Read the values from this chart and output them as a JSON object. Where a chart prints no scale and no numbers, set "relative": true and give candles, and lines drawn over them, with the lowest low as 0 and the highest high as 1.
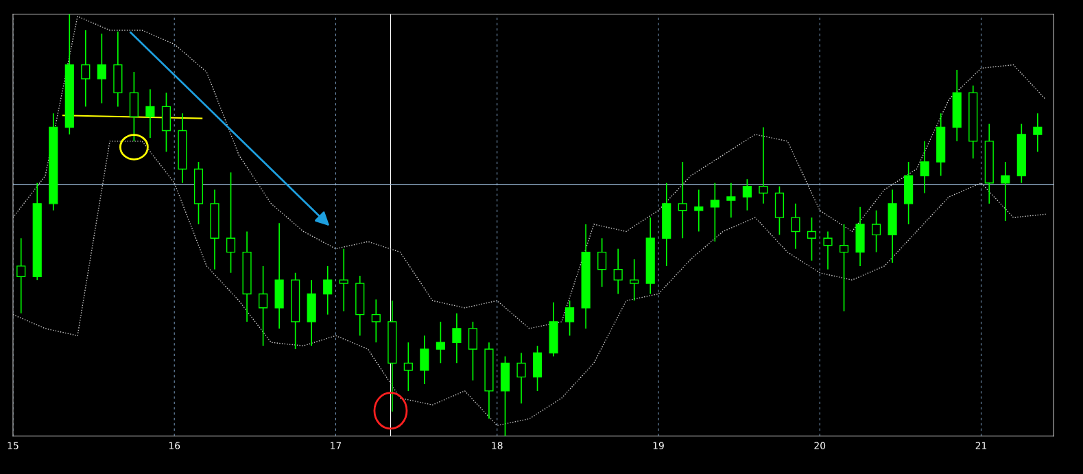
{
  "chart_data": {
    "type": "candlestick",
    "relative": true,
    "color": "#00ff00",
    "x": [
      15.05,
      15.15,
      15.25,
      15.35,
      15.45,
      15.55,
      15.65,
      15.75,
      15.85,
      15.95,
      16.05,
      16.15,
      16.25,
      16.35,
      16.45,
      16.55,
      16.65,
      16.75,
      16.85,
      16.95,
      17.05,
      17.15,
      17.25,
      17.35,
      17.45,
      17.55,
      17.65,
      17.75,
      17.85,
      17.95,
      18.05,
      18.15,
      18.25,
      18.35,
      18.45,
      18.55,
      18.65,
      18.75,
      18.85,
      18.95,
      19.05,
      19.15,
      19.25,
      19.35,
      19.45,
      19.55,
      19.65,
      19.75,
      19.85,
      19.95,
      20.05,
      20.15,
      20.25,
      20.35,
      20.45,
      20.55,
      20.65,
      20.75,
      20.85,
      20.95,
      21.05,
      21.15,
      21.25,
      21.35
    ],
    "ohlc": [
      [
        0.403,
        0.469,
        0.291,
        0.378
      ],
      [
        0.378,
        0.6,
        0.37,
        0.551
      ],
      [
        0.551,
        0.765,
        0.535,
        0.732
      ],
      [
        0.732,
        1.0,
        0.715,
        0.88
      ],
      [
        0.88,
        0.962,
        0.781,
        0.847
      ],
      [
        0.847,
        0.954,
        0.789,
        0.88
      ],
      [
        0.88,
        0.959,
        0.781,
        0.814
      ],
      [
        0.814,
        0.863,
        0.699,
        0.757
      ],
      [
        0.757,
        0.822,
        0.707,
        0.781
      ],
      [
        0.781,
        0.814,
        0.674,
        0.724
      ],
      [
        0.724,
        0.765,
        0.6,
        0.633
      ],
      [
        0.633,
        0.65,
        0.502,
        0.551
      ],
      [
        0.551,
        0.584,
        0.395,
        0.469
      ],
      [
        0.469,
        0.625,
        0.387,
        0.436
      ],
      [
        0.436,
        0.485,
        0.271,
        0.337
      ],
      [
        0.337,
        0.403,
        0.214,
        0.304
      ],
      [
        0.304,
        0.505,
        0.255,
        0.37
      ],
      [
        0.37,
        0.387,
        0.206,
        0.271
      ],
      [
        0.271,
        0.37,
        0.214,
        0.337
      ],
      [
        0.337,
        0.403,
        0.288,
        0.37
      ],
      [
        0.37,
        0.444,
        0.296,
        0.362
      ],
      [
        0.362,
        0.38,
        0.238,
        0.288
      ],
      [
        0.288,
        0.324,
        0.222,
        0.271
      ],
      [
        0.271,
        0.321,
        0.058,
        0.173
      ],
      [
        0.173,
        0.222,
        0.107,
        0.156
      ],
      [
        0.156,
        0.238,
        0.123,
        0.206
      ],
      [
        0.206,
        0.271,
        0.173,
        0.222
      ],
      [
        0.222,
        0.291,
        0.173,
        0.255
      ],
      [
        0.255,
        0.271,
        0.132,
        0.206
      ],
      [
        0.206,
        0.222,
        0.041,
        0.107
      ],
      [
        0.107,
        0.189,
        0.0,
        0.173
      ],
      [
        0.173,
        0.197,
        0.077,
        0.14
      ],
      [
        0.14,
        0.214,
        0.107,
        0.197
      ],
      [
        0.197,
        0.317,
        0.189,
        0.271
      ],
      [
        0.271,
        0.321,
        0.238,
        0.304
      ],
      [
        0.304,
        0.502,
        0.255,
        0.436
      ],
      [
        0.436,
        0.469,
        0.354,
        0.395
      ],
      [
        0.395,
        0.444,
        0.337,
        0.37
      ],
      [
        0.37,
        0.419,
        0.321,
        0.362
      ],
      [
        0.362,
        0.518,
        0.337,
        0.469
      ],
      [
        0.469,
        0.6,
        0.403,
        0.551
      ],
      [
        0.551,
        0.65,
        0.469,
        0.535
      ],
      [
        0.535,
        0.584,
        0.485,
        0.543
      ],
      [
        0.543,
        0.6,
        0.461,
        0.559
      ],
      [
        0.559,
        0.6,
        0.518,
        0.567
      ],
      [
        0.567,
        0.609,
        0.535,
        0.592
      ],
      [
        0.592,
        0.732,
        0.551,
        0.576
      ],
      [
        0.576,
        0.592,
        0.477,
        0.518
      ],
      [
        0.518,
        0.551,
        0.444,
        0.485
      ],
      [
        0.485,
        0.518,
        0.416,
        0.469
      ],
      [
        0.469,
        0.485,
        0.395,
        0.452
      ],
      [
        0.452,
        0.502,
        0.296,
        0.436
      ],
      [
        0.436,
        0.543,
        0.403,
        0.502
      ],
      [
        0.502,
        0.535,
        0.436,
        0.477
      ],
      [
        0.477,
        0.584,
        0.411,
        0.551
      ],
      [
        0.551,
        0.65,
        0.502,
        0.617
      ],
      [
        0.617,
        0.699,
        0.576,
        0.65
      ],
      [
        0.65,
        0.765,
        0.617,
        0.732
      ],
      [
        0.732,
        0.868,
        0.699,
        0.814
      ],
      [
        0.814,
        0.831,
        0.658,
        0.699
      ],
      [
        0.699,
        0.74,
        0.551,
        0.6
      ],
      [
        0.6,
        0.65,
        0.51,
        0.617
      ],
      [
        0.617,
        0.74,
        0.6,
        0.715
      ],
      [
        0.715,
        0.765,
        0.674,
        0.732
      ]
    ],
    "series": [
      {
        "type": "line",
        "color": "#d0d0d0",
        "line_style": "dotted",
        "x": [
          15.0,
          15.2,
          15.4,
          15.6,
          15.8,
          16.0,
          16.2,
          16.4,
          16.6,
          16.8,
          17.0,
          17.2,
          17.4,
          17.6,
          17.8,
          18.0,
          18.2,
          18.4,
          18.6,
          18.8,
          19.0,
          19.2,
          19.4,
          19.6,
          19.8,
          20.0,
          20.2,
          20.4,
          20.6,
          20.8,
          21.0,
          21.2,
          21.4
        ],
        "values": [
          0.518,
          0.617,
          0.995,
          0.962,
          0.962,
          0.929,
          0.863,
          0.666,
          0.551,
          0.485,
          0.444,
          0.461,
          0.436,
          0.321,
          0.304,
          0.321,
          0.255,
          0.271,
          0.502,
          0.485,
          0.535,
          0.617,
          0.666,
          0.715,
          0.699,
          0.535,
          0.485,
          0.584,
          0.633,
          0.798,
          0.872,
          0.88,
          0.798
        ]
      },
      {
        "type": "line",
        "color": "#d0d0d0",
        "line_style": "dotted",
        "x": [
          15.0,
          15.2,
          15.4,
          15.6,
          15.8,
          16.0,
          16.2,
          16.4,
          16.6,
          16.8,
          17.0,
          17.2,
          17.4,
          17.6,
          17.8,
          18.0,
          18.2,
          18.4,
          18.6,
          18.8,
          19.0,
          19.2,
          19.4,
          19.6,
          19.8,
          20.0,
          20.2,
          20.4,
          20.6,
          20.8,
          21.0,
          21.2,
          21.4
        ],
        "values": [
          0.288,
          0.255,
          0.238,
          0.699,
          0.699,
          0.6,
          0.403,
          0.321,
          0.222,
          0.214,
          0.238,
          0.206,
          0.09,
          0.074,
          0.107,
          0.025,
          0.041,
          0.09,
          0.173,
          0.321,
          0.337,
          0.419,
          0.485,
          0.518,
          0.436,
          0.387,
          0.37,
          0.403,
          0.485,
          0.567,
          0.6,
          0.518,
          0.526
        ]
      },
      {
        "type": "line",
        "color": "#ffff00",
        "line_style": "solid",
        "x": [
          15.31,
          16.17
        ],
        "values": [
          0.76,
          0.753
        ]
      }
    ],
    "xlim": [
      15,
      21.45
    ],
    "xticks": [
      15,
      16,
      17,
      18,
      19,
      20,
      21
    ],
    "grid": "x",
    "ref_lines": [
      {
        "axis": "x",
        "value": 17.34,
        "color": "#ffffff",
        "line_style": "solid"
      },
      {
        "axis": "y",
        "value": 0.597,
        "color": "#a0c0e0",
        "line_style": "solid"
      }
    ]
  }
}
